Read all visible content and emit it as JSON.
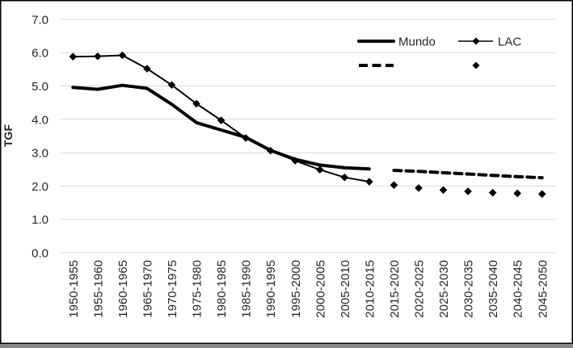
{
  "axis": {
    "y_title": "TGF"
  },
  "legend": {
    "mundo_label": "Mundo",
    "lac_label": "LAC"
  },
  "chart_data": {
    "type": "line",
    "title": "",
    "xlabel": "",
    "ylabel": "TGF",
    "ylim": [
      0,
      7
    ],
    "y_tick_labels": [
      "0.0",
      "1.0",
      "2.0",
      "3.0",
      "4.0",
      "5.0",
      "6.0",
      "7.0"
    ],
    "grid": true,
    "legend_position": "top-right-inside",
    "categories": [
      "1950-1955",
      "1955-1960",
      "1960-1965",
      "1965-1970",
      "1970-1975",
      "1975-1980",
      "1980-1985",
      "1985-1990",
      "1990-1995",
      "1995-2000",
      "2000-2005",
      "2005-2010",
      "2010-2015",
      "2015-2020",
      "2020-2025",
      "2025-2030",
      "2030-2035",
      "2035-2040",
      "2040-2045",
      "2045-2050"
    ],
    "series": [
      {
        "name": "Mundo",
        "style": "thick-solid",
        "start_index": 0,
        "values": [
          4.96,
          4.9,
          5.02,
          4.93,
          4.45,
          3.9,
          3.68,
          3.46,
          3.07,
          2.8,
          2.63,
          2.55,
          2.51
        ]
      },
      {
        "name": "",
        "style": "thick-dashed",
        "start_index": 13,
        "values": [
          2.47,
          2.44,
          2.4,
          2.36,
          2.32,
          2.28,
          2.25
        ]
      },
      {
        "name": "LAC",
        "style": "thin-line-diamond",
        "start_index": 0,
        "values": [
          5.88,
          5.89,
          5.92,
          5.52,
          5.03,
          4.47,
          3.97,
          3.44,
          3.06,
          2.76,
          2.49,
          2.26,
          2.13
        ]
      },
      {
        "name": "",
        "style": "diamond-only",
        "start_index": 13,
        "values": [
          2.03,
          1.94,
          1.88,
          1.84,
          1.8,
          1.78,
          1.76
        ]
      }
    ],
    "colors": {
      "series": "#000000",
      "gridline": "#d9d9d9",
      "text": "#262626",
      "border": "#000000",
      "background": "#ffffff"
    }
  }
}
